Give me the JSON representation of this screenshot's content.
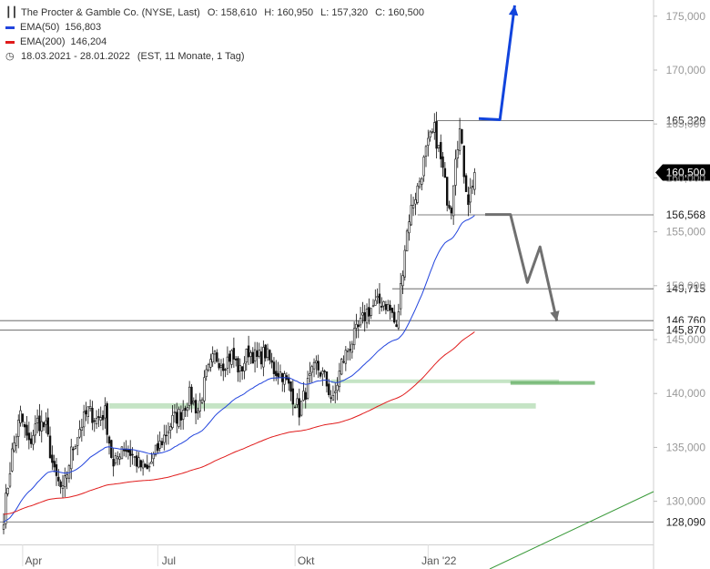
{
  "header": {
    "title": "The Procter & Gamble Co. (NYSE, Last)",
    "open": "O: 158,610",
    "high": "H: 160,950",
    "low": "L: 157,320",
    "close": "C: 160,500",
    "ema50_label": "EMA(50)",
    "ema50_value": "156,803",
    "ema200_label": "EMA(200)",
    "ema200_value": "146,204",
    "period": "18.03.2021 - 28.01.2022",
    "period_info": "(EST, 11 Monate, 1 Tag)"
  },
  "colors": {
    "candles": "#111111",
    "ema50": "#2244dd",
    "ema200": "#e01b1b",
    "support_zone": "#9fd29f",
    "support_zone_dark": "#5fae5f",
    "trendline": "#3a9a3a",
    "arrow_up": "#1144dd",
    "arrow_down": "#707070",
    "level_line": "#555555"
  },
  "chart_data": {
    "type": "candlestick",
    "y_axis": {
      "min": 126000,
      "max": 176500,
      "ticks": [
        "175,000",
        "170,000",
        "165,000",
        "160,000",
        "155,000",
        "150,000",
        "145,000",
        "140,000",
        "135,000",
        "130,000"
      ],
      "tick_values": [
        175000,
        170000,
        165000,
        160000,
        155000,
        150000,
        145000,
        140000,
        135000,
        130000
      ]
    },
    "x_axis": {
      "labels": [
        "Apr",
        "Jul",
        "Okt",
        "Jan '22"
      ],
      "label_index": [
        9,
        73,
        138,
        201
      ]
    },
    "bars": 224,
    "price_path": [
      [
        0,
        128.6
      ],
      [
        4,
        134.5
      ],
      [
        8,
        138.0
      ],
      [
        12,
        135.2
      ],
      [
        16,
        137.4
      ],
      [
        20,
        136.8
      ],
      [
        24,
        132.5
      ],
      [
        28,
        130.8
      ],
      [
        32,
        134.5
      ],
      [
        36,
        136.8
      ],
      [
        40,
        138.4
      ],
      [
        44,
        137.6
      ],
      [
        48,
        138.2
      ],
      [
        52,
        133.0
      ],
      [
        56,
        135.2
      ],
      [
        60,
        134.5
      ],
      [
        64,
        133.4
      ],
      [
        68,
        132.8
      ],
      [
        72,
        134.5
      ],
      [
        76,
        136.0
      ],
      [
        80,
        137.5
      ],
      [
        84,
        138.2
      ],
      [
        88,
        139.8
      ],
      [
        92,
        138.4
      ],
      [
        96,
        141.6
      ],
      [
        100,
        143.5
      ],
      [
        104,
        142.8
      ],
      [
        108,
        143.6
      ],
      [
        112,
        142.0
      ],
      [
        116,
        144.0
      ],
      [
        120,
        143.2
      ],
      [
        124,
        143.8
      ],
      [
        128,
        142.2
      ],
      [
        132,
        141.8
      ],
      [
        136,
        140.2
      ],
      [
        140,
        138.4
      ],
      [
        144,
        140.8
      ],
      [
        148,
        142.6
      ],
      [
        152,
        141.4
      ],
      [
        156,
        139.2
      ],
      [
        160,
        142.8
      ],
      [
        164,
        144.5
      ],
      [
        168,
        146.0
      ],
      [
        172,
        147.6
      ],
      [
        176,
        148.2
      ],
      [
        180,
        148.6
      ],
      [
        184,
        147.4
      ],
      [
        186,
        145.8
      ],
      [
        188,
        149.8
      ],
      [
        190,
        153.6
      ],
      [
        192,
        156.4
      ],
      [
        194,
        157.8
      ],
      [
        196,
        159.0
      ],
      [
        198,
        160.6
      ],
      [
        200,
        162.4
      ],
      [
        202,
        163.6
      ],
      [
        204,
        164.4
      ],
      [
        206,
        162.6
      ],
      [
        208,
        160.6
      ],
      [
        210,
        158.2
      ],
      [
        212,
        157.4
      ],
      [
        214,
        162.4
      ],
      [
        216,
        164.4
      ],
      [
        218,
        160.6
      ],
      [
        220,
        158.0
      ],
      [
        222,
        159.6
      ],
      [
        223,
        160.5
      ]
    ],
    "ema50": {
      "name": "EMA(50)",
      "last": 156.803
    },
    "ema200": {
      "name": "EMA(200)",
      "last": 146.204
    },
    "levels": [
      {
        "value": 165.32,
        "label": "165,320"
      },
      {
        "value": 156.568,
        "label": "156,568"
      },
      {
        "value": 149.715,
        "label": "149,715"
      },
      {
        "value": 146.76,
        "label": "146,760"
      },
      {
        "value": 145.87,
        "label": "145,870"
      },
      {
        "value": 128.09,
        "label": "128,090"
      }
    ],
    "last_price": {
      "value": 160.5,
      "label": "160,500"
    },
    "zones": [
      {
        "from_bar": 50,
        "to_bar": 252,
        "low": 138.6,
        "high": 139.1
      },
      {
        "from_bar": 155,
        "to_bar": 263,
        "low": 141.05,
        "high": 141.3
      },
      {
        "from_bar": 240,
        "to_bar": 280,
        "low": 140.85,
        "high": 141.15
      }
    ],
    "scenario_up": {
      "points": [
        [
          225,
          165.5
        ],
        [
          235,
          165.4
        ],
        [
          242,
          176
        ]
      ]
    },
    "scenario_down": {
      "points": [
        [
          228,
          156.6
        ],
        [
          240,
          156.6
        ],
        [
          248,
          150.3
        ],
        [
          254,
          153.6
        ],
        [
          262,
          146.7
        ]
      ]
    }
  }
}
